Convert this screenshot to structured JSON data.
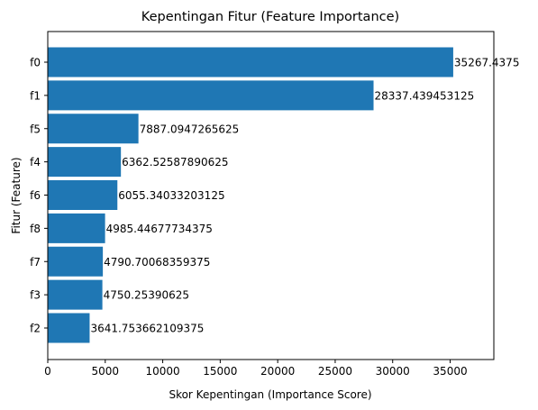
{
  "chart_data": {
    "type": "bar",
    "orientation": "horizontal",
    "title": "Kepentingan Fitur (Feature Importance)",
    "xlabel": "Skor Kepentingan (Importance Score)",
    "ylabel": "Fitur (Feature)",
    "categories": [
      "f0",
      "f1",
      "f5",
      "f4",
      "f6",
      "f8",
      "f7",
      "f3",
      "f2"
    ],
    "values": [
      35267.4375,
      28337.439453125,
      7887.0947265625,
      6362.52587890625,
      6055.34033203125,
      4985.44677734375,
      4790.70068359375,
      4750.25390625,
      3641.753662109375
    ],
    "value_labels": [
      "35267.4375",
      "28337.439453125",
      "7887.0947265625",
      "6362.52587890625",
      "6055.34033203125",
      "4985.44677734375",
      "4790.70068359375",
      "4750.25390625",
      "3641.753662109375"
    ],
    "xlim": [
      0,
      38800
    ],
    "xticks": [
      0,
      5000,
      10000,
      15000,
      20000,
      25000,
      30000,
      35000
    ],
    "xtick_labels": [
      "0",
      "5000",
      "10000",
      "15000",
      "20000",
      "25000",
      "30000",
      "35000"
    ],
    "grid": false,
    "bar_color": "#1f77b4"
  }
}
